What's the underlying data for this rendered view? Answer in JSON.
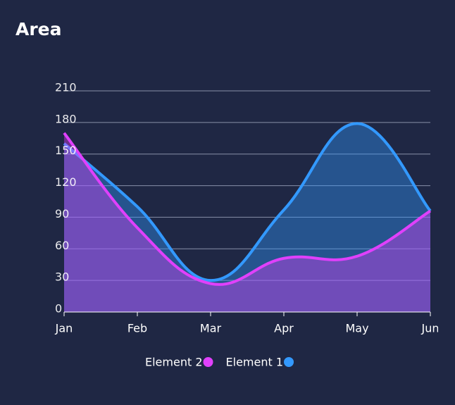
{
  "chart_data": {
    "type": "area",
    "title": "Area",
    "categories": [
      "Jan",
      "Feb",
      "Mar",
      "Apr",
      "May",
      "Jun"
    ],
    "series": [
      {
        "name": "Element 2",
        "color": "#e040fb",
        "values": [
          170,
          80,
          27,
          51,
          53,
          96
        ]
      },
      {
        "name": "Element 1",
        "color": "#3399ff",
        "values": [
          160,
          100,
          30,
          97,
          179,
          96
        ]
      }
    ],
    "ylim": [
      0,
      210
    ],
    "yticks": [
      0,
      30,
      60,
      90,
      120,
      150,
      180,
      210
    ],
    "grid": true,
    "legend": "bottom"
  }
}
